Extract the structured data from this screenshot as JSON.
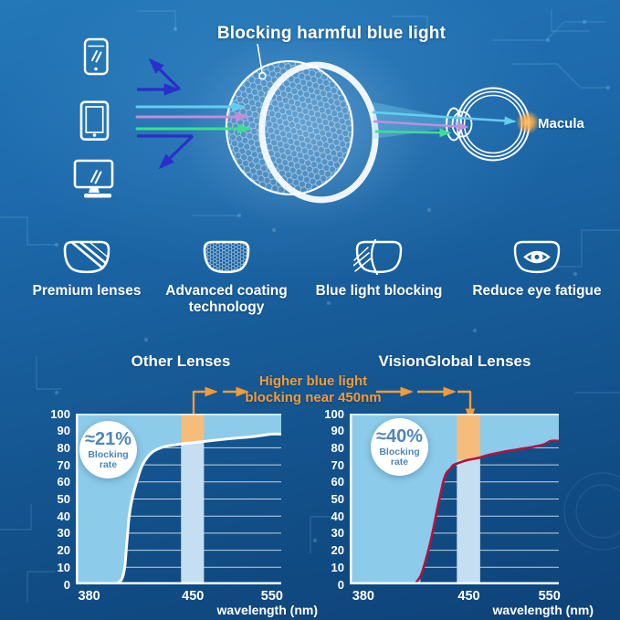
{
  "colors": {
    "accent_orange": "#F29B38",
    "band_orange": "#F6BC7C",
    "band_blue": "#C5DEF2",
    "area_blue": "#8CCBE9",
    "curve_left": "#FFFFFF",
    "curve_right": "#B11240",
    "badge_text": "#4D87BA",
    "ray_cyan": "#63CDF0",
    "ray_purple": "#BF8FD8",
    "ray_green": "#3FDD92",
    "reflect_blue": "#2B2ECB",
    "macula_glow": "#FFAA46",
    "grid_line": "#FFFFFF"
  },
  "hero": {
    "title": "Blocking harmful blue light",
    "macula_label": "Macula",
    "devices": [
      {
        "icon": "smartphone-icon"
      },
      {
        "icon": "tablet-icon"
      },
      {
        "icon": "monitor-icon"
      }
    ]
  },
  "features": [
    {
      "icon": "premium-lens-icon",
      "label": "Premium lenses"
    },
    {
      "icon": "coating-lens-icon",
      "label": "Advanced coating technology"
    },
    {
      "icon": "blue-light-block-lens-icon",
      "label": "Blue light blocking"
    },
    {
      "icon": "eye-comfort-lens-icon",
      "label": "Reduce eye fatigue"
    }
  ],
  "comparison": {
    "annotation_line1": "Higher blue light",
    "annotation_line2": "blocking near 450nm"
  },
  "chart_data": [
    {
      "type": "area",
      "title": "Other Lenses",
      "badge_value": "≈21%",
      "badge_label": "Blocking rate",
      "xlabel": "wavelength (nm)",
      "xticks": [
        380,
        450,
        550
      ],
      "ylim": [
        0,
        100
      ],
      "ytick_step": 10,
      "grid": true,
      "highlight_band_nm": [
        442,
        464
      ],
      "series": [
        {
          "name": "blocking-rate-curve",
          "points": [
            [
              380,
              0
            ],
            [
              398,
              0
            ],
            [
              402,
              3
            ],
            [
              404,
              10
            ],
            [
              405,
              20
            ],
            [
              406,
              30
            ],
            [
              407,
              40
            ],
            [
              409,
              50
            ],
            [
              412,
              60
            ],
            [
              416,
              70
            ],
            [
              422,
              77
            ],
            [
              430,
              80.5
            ],
            [
              440,
              82
            ],
            [
              450,
              83
            ],
            [
              470,
              84
            ],
            [
              500,
              85.5
            ],
            [
              525,
              86.5
            ],
            [
              550,
              88
            ]
          ]
        }
      ]
    },
    {
      "type": "area",
      "title": "VisionGlobal Lenses",
      "badge_value": "≈40%",
      "badge_label": "Blocking rate",
      "xlabel": "wavelength (nm)",
      "xticks": [
        380,
        450,
        550
      ],
      "ylim": [
        0,
        100
      ],
      "ytick_step": 10,
      "grid": true,
      "highlight_band_nm": [
        442,
        464
      ],
      "series": [
        {
          "name": "blocking-rate-curve",
          "points": [
            [
              380,
              0
            ],
            [
              414,
              0
            ],
            [
              418,
              5
            ],
            [
              421,
              13
            ],
            [
              424,
              23
            ],
            [
              427,
              35
            ],
            [
              429,
              44
            ],
            [
              431,
              52
            ],
            [
              433,
              60
            ],
            [
              435,
              65
            ],
            [
              438,
              68
            ],
            [
              440,
              70
            ],
            [
              446,
              72
            ],
            [
              450,
              73
            ],
            [
              461,
              74
            ],
            [
              476,
              76
            ],
            [
              491,
              77.5
            ],
            [
              510,
              79
            ],
            [
              529,
              80.5
            ],
            [
              543,
              82
            ],
            [
              552,
              84
            ]
          ]
        }
      ]
    }
  ]
}
